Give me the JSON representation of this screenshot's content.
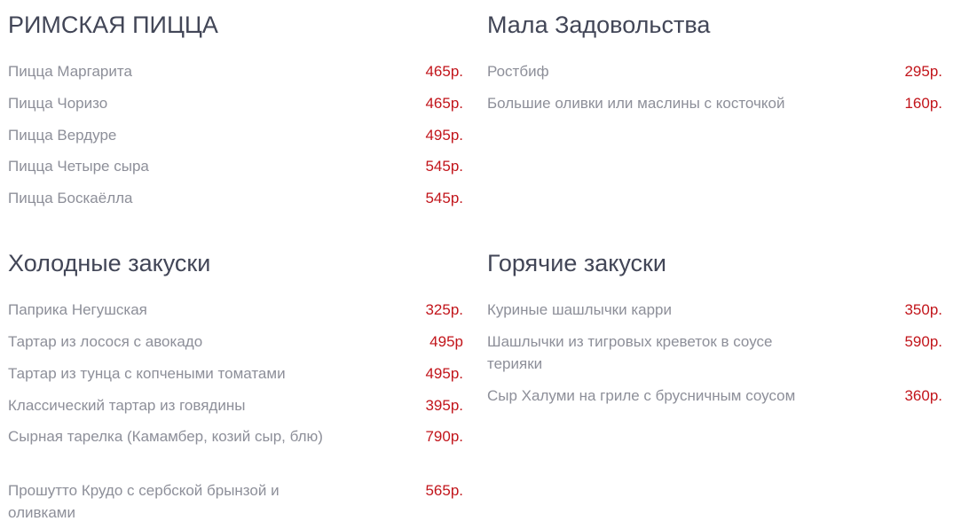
{
  "sections": [
    {
      "title": "РИМСКАЯ ПИЦЦА",
      "items": [
        {
          "name": "Пицца Маргарита",
          "price": "465р."
        },
        {
          "name": "Пицца Чоризо",
          "price": "465р."
        },
        {
          "name": "Пицца Вердуре",
          "price": "495р."
        },
        {
          "name": "Пицца Четыре сыра",
          "price": "545р."
        },
        {
          "name": "Пицца Боскаёлла",
          "price": "545р."
        }
      ]
    },
    {
      "title": "Мала Задовольства",
      "items": [
        {
          "name": "Ростбиф",
          "price": "295р."
        },
        {
          "name": "Большие оливки или маслины с косточкой",
          "price": "160р."
        }
      ]
    },
    {
      "title": "Холодные закуски",
      "items": [
        {
          "name": "Паприка Негушская",
          "price": "325р."
        },
        {
          "name": "Тартар из лосося с авокадо",
          "price": "495р"
        },
        {
          "name": "Тартар из тунца с копчеными томатами",
          "price": "495р."
        },
        {
          "name": "Классический тартар из говядины",
          "price": "395р."
        },
        {
          "name": "Сырная тарелка (Камамбер, козий сыр, блю)",
          "price": "790р."
        },
        {
          "name": "Прошутто Крудо с сербской брынзой и оливками",
          "price": "565р."
        }
      ]
    },
    {
      "title": "Горячие закуски",
      "items": [
        {
          "name": "Куриные шашлычки карри",
          "price": "350р."
        },
        {
          "name": "Шашлычки из тигровых креветок в соусе терияки",
          "price": "590р."
        },
        {
          "name": "Сыр Халуми на гриле с брусничным соусом",
          "price": "360р."
        }
      ]
    }
  ]
}
